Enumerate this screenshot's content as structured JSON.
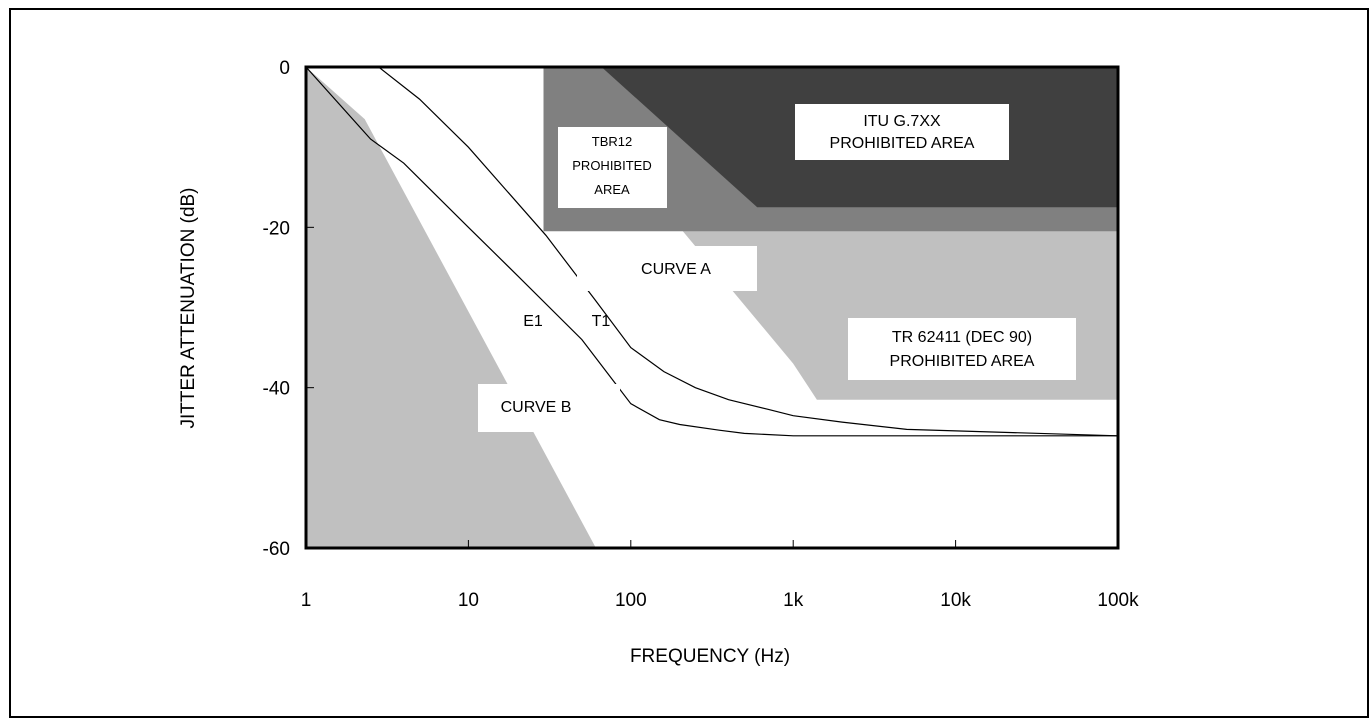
{
  "chart_data": {
    "type": "line",
    "title": "",
    "xlabel": "FREQUENCY (Hz)",
    "ylabel": "JITTER ATTENUATION (dB)",
    "x_scale": "log",
    "xlim": [
      1,
      100000
    ],
    "ylim": [
      -60,
      0
    ],
    "x_ticks": [
      "1",
      "10",
      "100",
      "1k",
      "10k",
      "100k"
    ],
    "y_ticks": [
      "0",
      "-20",
      "-40",
      "-60"
    ],
    "colors": {
      "light_region": "#c0c0c0",
      "mid_region": "#808080",
      "dark_region": "#404040",
      "curve": "#000000"
    },
    "regions": [
      {
        "name": "TR 62411 (DEC 90) PROHIBITED AREA",
        "color": "#c0c0c0",
        "points": [
          [
            17,
            0
          ],
          [
            100000,
            0
          ],
          [
            100000,
            -41.5
          ],
          [
            1400,
            -41.5
          ],
          [
            1000,
            -37
          ],
          [
            30,
            0
          ]
        ]
      },
      {
        "name": "TBR12 PROHIBITED AREA",
        "color": "#808080",
        "points": [
          [
            29,
            0
          ],
          [
            100000,
            0
          ],
          [
            100000,
            -20.5
          ],
          [
            29,
            -20.5
          ]
        ]
      },
      {
        "name": "ITU G.7XX PROHIBITED AREA",
        "color": "#404040",
        "points": [
          [
            66,
            0
          ],
          [
            100000,
            0
          ],
          [
            100000,
            -17.5
          ],
          [
            600,
            -17.5
          ]
        ]
      },
      {
        "name": "CURVE B",
        "color": "#c0c0c0",
        "points": [
          [
            1,
            0
          ],
          [
            2.3,
            -6.5
          ],
          [
            61,
            -60
          ],
          [
            1,
            -60
          ]
        ]
      }
    ],
    "series": [
      {
        "name": "CURVE A",
        "x": [
          1,
          2.5,
          4,
          10,
          20,
          50,
          100,
          150,
          200,
          350,
          500,
          1000,
          2000,
          5000,
          10000,
          100000
        ],
        "y": [
          0,
          -9,
          -12,
          -20,
          -26,
          -34,
          -42,
          -44,
          -44.6,
          -45.3,
          -45.7,
          -46,
          -46,
          -46,
          -46,
          -46
        ]
      },
      {
        "name": "CURVE B",
        "x": [
          1,
          2.8,
          5,
          10,
          30,
          60,
          100,
          160,
          250,
          400,
          700,
          1000,
          2000,
          5000,
          100000
        ],
        "y": [
          0,
          0,
          -4,
          -10,
          -21,
          -29,
          -35,
          -38,
          -40,
          -41.5,
          -42.7,
          -43.5,
          -44.3,
          -45.2,
          -46
        ]
      }
    ],
    "annotations": [
      {
        "text": [
          "CURVE A"
        ],
        "box": true
      },
      {
        "text": [
          "CURVE B"
        ],
        "box": true
      },
      {
        "text": [
          "E1"
        ],
        "box": false
      },
      {
        "text": [
          "T1"
        ],
        "box": false
      },
      {
        "text": [
          "TBR12",
          "PROHIBITED",
          "AREA"
        ],
        "box": true
      },
      {
        "text": [
          "ITU G.7XX",
          "PROHIBITED AREA"
        ],
        "box": true
      },
      {
        "text": [
          "TR 62411 (DEC 90)",
          "PROHIBITED AREA"
        ],
        "box": true
      }
    ]
  }
}
